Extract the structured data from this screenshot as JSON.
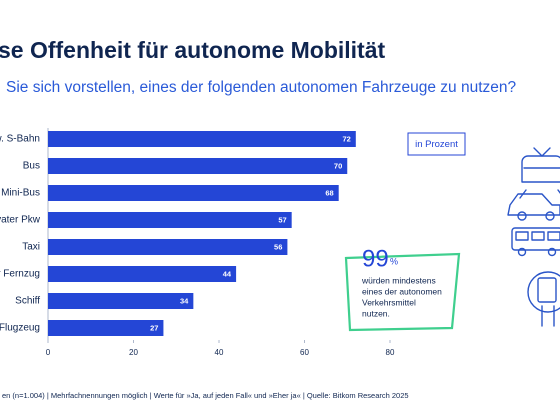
{
  "chart_data": {
    "type": "barh",
    "title": "se Offenheit für autonome Mobilität",
    "subtitle": "Sie sich vorstellen, eines der folgenden autonomen Fahrzeuge zu nutzen?",
    "categories": [
      "w. S-Bahn",
      "Bus",
      "Mini-Bus",
      "vater Pkw",
      "Taxi",
      "r Fernzug",
      "Schiff",
      "Flugzeug"
    ],
    "values": [
      72,
      70,
      68,
      57,
      56,
      44,
      34,
      27
    ],
    "color": "#2446d6",
    "xlim": [
      0,
      80
    ],
    "xticks": [
      0,
      20,
      40,
      60,
      80
    ],
    "unit_note": "in Prozent",
    "callout": {
      "number": "99",
      "unit": "%",
      "lines": [
        "würden mindestens",
        "eines der autonomen",
        "Verkehrsmittel",
        "nutzen."
      ]
    },
    "footnote": "en (n=1.004) | Mehrfachnennungen möglich | Werte für »Ja, auf jeden Fall« und »Eher ja« | Quelle: Bitkom Research 2025"
  }
}
